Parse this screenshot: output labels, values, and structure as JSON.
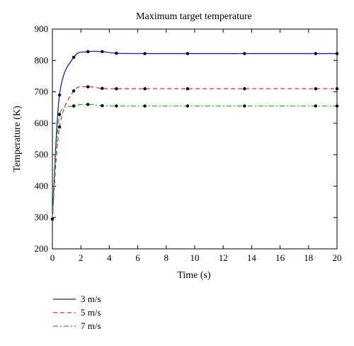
{
  "chart_data": {
    "type": "line",
    "title": "Maximum target temperature",
    "xlabel": "Time (s)",
    "ylabel": "Temperature (K)",
    "xlim": [
      0,
      20
    ],
    "ylim": [
      200,
      900
    ],
    "xticks": [
      0,
      2,
      4,
      6,
      8,
      10,
      12,
      14,
      16,
      18,
      20
    ],
    "yticks": [
      200,
      300,
      400,
      500,
      600,
      700,
      800,
      900
    ],
    "grid": false,
    "legend_placement": "below-left",
    "series": [
      {
        "name": "3 m/s",
        "color": "#1f1fbf",
        "dash": "solid",
        "x": [
          0,
          0.5,
          1.5,
          2.5,
          3.5,
          4.5,
          6.5,
          9.5,
          13.5,
          18.5,
          20
        ],
        "y": [
          295,
          690,
          810,
          828,
          828,
          823,
          822,
          822,
          822,
          822,
          822
        ]
      },
      {
        "name": "5 m/s",
        "color": "#e03030",
        "dash": "dashed",
        "x": [
          0,
          0.5,
          1.5,
          2.5,
          3.5,
          4.5,
          6.5,
          9.5,
          13.5,
          18.5,
          20
        ],
        "y": [
          295,
          588,
          703,
          716,
          711,
          710,
          710,
          710,
          710,
          710,
          710
        ]
      },
      {
        "name": "7 m/s",
        "color": "#22bb22",
        "dash": "dashdot",
        "x": [
          0,
          0.5,
          1.5,
          2.5,
          3.5,
          4.5,
          6.5,
          9.5,
          13.5,
          18.5,
          20
        ],
        "y": [
          295,
          628,
          655,
          660,
          656,
          655,
          655,
          655,
          655,
          655,
          655
        ]
      }
    ]
  }
}
